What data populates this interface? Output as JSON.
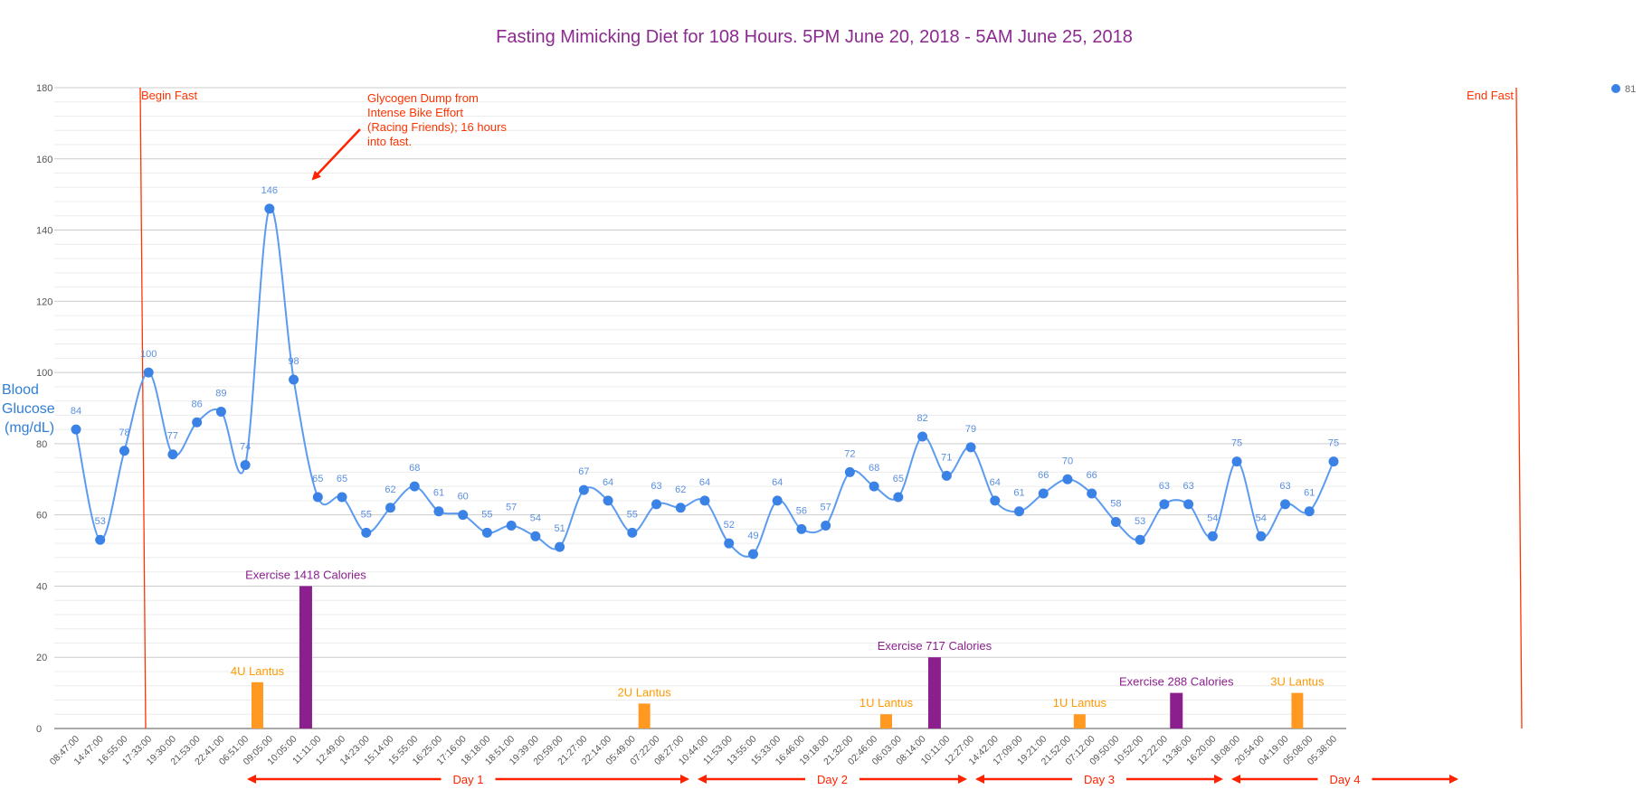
{
  "chart_data": {
    "type": "line",
    "title": "Fasting Mimicking Diet for 108 Hours.  5PM June 20, 2018 - 5AM June 25, 2018",
    "ylabel": [
      "Blood",
      "Glucose",
      "(mg/dL)"
    ],
    "xlabel": "",
    "ylim": [
      0,
      180
    ],
    "yticks": [
      0,
      20,
      40,
      60,
      80,
      100,
      120,
      140,
      160,
      180
    ],
    "grid": true,
    "legend_position": "top-right",
    "legend_label": "81",
    "colors": {
      "line": "#5b9bf0",
      "point": "#3b82e6",
      "exercise": "#8b1f8e",
      "lantus": "#ff9922",
      "annotation": "#ff3300",
      "title": "#8b2a8f",
      "ylabel": "#2f7fd6"
    },
    "x": [
      "08:47:00",
      "14:47:00",
      "16:55:00",
      "17:33:00",
      "19:30:00",
      "21:53:00",
      "22:41:00",
      "06:51:00",
      "09:05:00",
      "10:05:00",
      "11:11:00",
      "12:49:00",
      "14:23:00",
      "15:14:00",
      "15:55:00",
      "16:25:00",
      "17:16:00",
      "18:18:00",
      "18:51:00",
      "19:39:00",
      "20:59:00",
      "21:27:00",
      "22:14:00",
      "05:49:00",
      "07:22:00",
      "08:27:00",
      "10:44:00",
      "11:53:00",
      "13:55:00",
      "15:33:00",
      "16:46:00",
      "19:18:00",
      "21:32:00",
      "02:46:00",
      "06:03:00",
      "08:14:00",
      "10:11:00",
      "12:27:00",
      "14:42:00",
      "17:09:00",
      "19:21:00",
      "21:52:00",
      "07:12:00",
      "09:50:00",
      "10:52:00",
      "12:22:00",
      "13:36:00",
      "16:20:00",
      "18:08:00",
      "20:54:00",
      "04:19:00",
      "05:08:00",
      "05:38:00"
    ],
    "series": [
      {
        "type": "line",
        "values": [
          84,
          53,
          78,
          100,
          77,
          86,
          89,
          74,
          146,
          98,
          65,
          65,
          55,
          62,
          68,
          61,
          60,
          55,
          57,
          54,
          51,
          67,
          64,
          55,
          63,
          62,
          64,
          52,
          49,
          64,
          56,
          57,
          72,
          68,
          65,
          82,
          71,
          79,
          64,
          61,
          66,
          70,
          66,
          58,
          53,
          63,
          63,
          54,
          75,
          54,
          63,
          61,
          75
        ]
      }
    ],
    "bars": [
      {
        "kind": "lantus",
        "x_index": 7.5,
        "value": 13,
        "label": "4U Lantus"
      },
      {
        "kind": "exercise",
        "x_index": 9.5,
        "value": 40,
        "label": "Exercise 1418 Calories"
      },
      {
        "kind": "lantus",
        "x_index": 23.5,
        "value": 7,
        "label": "2U Lantus"
      },
      {
        "kind": "lantus",
        "x_index": 33.5,
        "value": 4,
        "label": "1U Lantus"
      },
      {
        "kind": "exercise",
        "x_index": 35.5,
        "value": 20,
        "label": "Exercise 717 Calories"
      },
      {
        "kind": "lantus",
        "x_index": 41.5,
        "value": 4,
        "label": "1U Lantus"
      },
      {
        "kind": "exercise",
        "x_index": 45.5,
        "value": 10,
        "label": "Exercise 288 Calories"
      },
      {
        "kind": "lantus",
        "x_index": 50.5,
        "value": 10,
        "label": "3U Lantus"
      }
    ],
    "annotations": {
      "begin_fast": "Begin Fast",
      "end_fast": "End Fast",
      "glycogen": [
        "Glycogen Dump from",
        "Intense Bike Effort",
        "(Racing Friends); 16 hours",
        "into fast."
      ]
    },
    "days": [
      "Day 1",
      "Day 2",
      "Day 3",
      "Day 4"
    ]
  }
}
